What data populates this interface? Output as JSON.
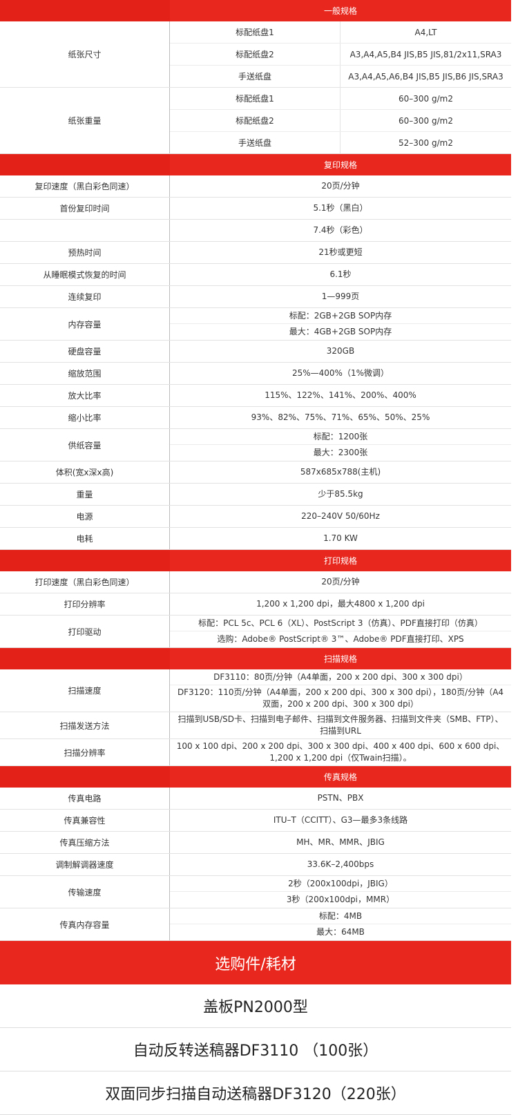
{
  "sections": [
    {
      "title": "一般规格",
      "groups": [
        {
          "label": "纸张尺寸",
          "rows": [
            [
              "标配纸盘1",
              "A4,LT"
            ],
            [
              "标配纸盘2",
              "A3,A4,A5,B4 JIS,B5 JIS,81/2x11,SRA3"
            ],
            [
              "手送纸盘",
              "A3,A4,A5,A6,B4 JIS,B5 JIS,B6 JIS,SRA3"
            ]
          ]
        },
        {
          "label": "纸张重量",
          "rows": [
            [
              "标配纸盘1",
              "60–300 g/m2"
            ],
            [
              "标配纸盘2",
              "60–300 g/m2"
            ],
            [
              "手送纸盘",
              "52–300 g/m2"
            ]
          ]
        }
      ]
    },
    {
      "title": "复印规格",
      "groups": [
        {
          "label": "复印速度（黑白彩色同速）",
          "values": [
            "20页/分钟"
          ]
        },
        {
          "label": "首份复印时间",
          "values": [
            "5.1秒（黑白）"
          ]
        },
        {
          "label": null,
          "values": [
            "7.4秒（彩色）"
          ]
        },
        {
          "label": "预热时间",
          "values": [
            "21秒或更短"
          ]
        },
        {
          "label": "从睡眠模式恢复的时间",
          "values": [
            "6.1秒"
          ]
        },
        {
          "label": "连续复印",
          "values": [
            "1—999页"
          ]
        },
        {
          "label": "内存容量",
          "values": [
            "标配：2GB+2GB SOP内存",
            "最大：4GB+2GB SOP内存"
          ]
        },
        {
          "label": "硬盘容量",
          "values": [
            "320GB"
          ]
        },
        {
          "label": "缩放范围",
          "values": [
            "25%—400%（1%微调）"
          ]
        },
        {
          "label": "放大比率",
          "values": [
            "115%、122%、141%、200%、400%"
          ]
        },
        {
          "label": "缩小比率",
          "values": [
            "93%、82%、75%、71%、65%、50%、25%"
          ]
        },
        {
          "label": "供纸容量",
          "values": [
            "标配：1200张",
            "最大：2300张"
          ]
        },
        {
          "label": "体积(宽x深x高)",
          "values": [
            "587x685x788(主机)"
          ]
        },
        {
          "label": "重量",
          "values": [
            "少于85.5kg"
          ]
        },
        {
          "label": "电源",
          "values": [
            "220–240V 50/60Hz"
          ]
        },
        {
          "label": "电耗",
          "values": [
            "1.70 KW"
          ]
        }
      ]
    },
    {
      "title": "打印规格",
      "groups": [
        {
          "label": "打印速度（黑白彩色同速）",
          "values": [
            "20页/分钟"
          ]
        },
        {
          "label": "打印分辨率",
          "values": [
            "1,200 x 1,200 dpi，最大4800 x 1,200 dpi"
          ]
        },
        {
          "label": "打印驱动",
          "values": [
            "标配：PCL 5c、PCL 6（XL）、PostScript 3（仿真）、PDF直接打印（仿真）",
            "选购：Adobe® PostScript® 3™、Adobe® PDF直接打印、XPS"
          ]
        }
      ]
    },
    {
      "title": "扫描规格",
      "groups": [
        {
          "label": "扫描速度",
          "values": [
            "DF3110：80页/分钟（A4单面，200 x 200 dpi、300 x 300 dpi）",
            "DF3120：110页/分钟（A4单面，200 x 200 dpi、300 x 300 dpi），180页/分钟（A4双面，200 x 200 dpi、300 x 300 dpi）"
          ]
        },
        {
          "label": "扫描发送方法",
          "values": [
            "扫描到USB/SD卡、扫描到电子邮件、扫描到文件服务器、扫描到文件夹（SMB、FTP）、扫描到URL"
          ]
        },
        {
          "label": "扫描分辨率",
          "values": [
            "100 x 100 dpi、200 x 200 dpi、300 x 300 dpi、400 x 400 dpi、600 x 600 dpi、1,200 x 1,200 dpi（仅Twain扫描）。"
          ]
        }
      ]
    },
    {
      "title": "传真规格",
      "groups": [
        {
          "label": "传真电路",
          "values": [
            "PSTN、PBX"
          ]
        },
        {
          "label": "传真兼容性",
          "values": [
            "ITU–T（CCITT）、G3—最多3条线路"
          ]
        },
        {
          "label": "传真压缩方法",
          "values": [
            "MH、MR、MMR、JBIG"
          ]
        },
        {
          "label": "调制解调器速度",
          "values": [
            "33.6K–2,400bps"
          ]
        },
        {
          "label": "传输速度",
          "values": [
            "2秒（200x100dpi，JBIG）",
            "3秒（200x100dpi，MMR）"
          ]
        },
        {
          "label": "传真内存容量",
          "values": [
            "标配：4MB",
            "最大：64MB"
          ]
        }
      ]
    }
  ],
  "options": {
    "title": "选购件/耗材",
    "items": [
      "盖板PN2000型",
      "自动反转送稿器DF3110 （100张）",
      "双面同步扫描自动送稿器DF3120（220张）"
    ]
  }
}
